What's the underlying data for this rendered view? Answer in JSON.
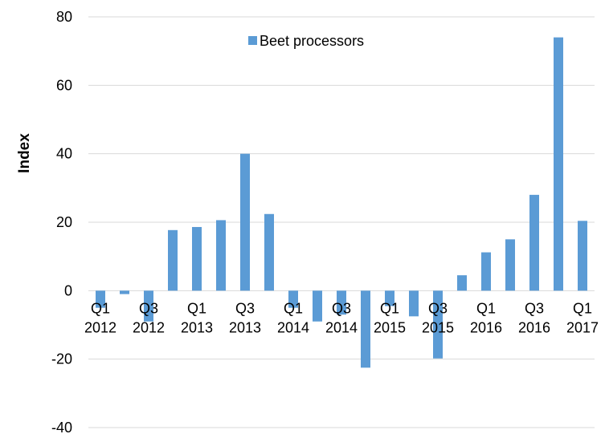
{
  "chart_data": {
    "type": "bar",
    "ylabel": "Index",
    "xlabel": "",
    "ylim": [
      -40,
      80
    ],
    "y_ticks": [
      "80",
      "60",
      "40",
      "20",
      "0",
      "-20",
      "-40"
    ],
    "y_tick_values": [
      80,
      60,
      40,
      20,
      0,
      -20,
      -40
    ],
    "grid": "horizontal",
    "legend_position": "top-center",
    "color": "#5B9BD5",
    "categories": [
      "Q1 2012",
      "Q2 2012",
      "Q3 2012",
      "Q4 2012",
      "Q1 2013",
      "Q2 2013",
      "Q3 2013",
      "Q4 2013",
      "Q1 2014",
      "Q2 2014",
      "Q3 2014",
      "Q4 2014",
      "Q1 2015",
      "Q2 2015",
      "Q3 2015",
      "Q4 2015",
      "Q1 2016",
      "Q2 2016",
      "Q3 2016",
      "Q4 2016",
      "Q1 2017"
    ],
    "x_tick_labels": [
      {
        "index": 0,
        "line1": "Q1",
        "line2": "2012"
      },
      {
        "index": 2,
        "line1": "Q3",
        "line2": "2012"
      },
      {
        "index": 4,
        "line1": "Q1",
        "line2": "2013"
      },
      {
        "index": 6,
        "line1": "Q3",
        "line2": "2013"
      },
      {
        "index": 8,
        "line1": "Q1",
        "line2": "2014"
      },
      {
        "index": 10,
        "line1": "Q3",
        "line2": "2014"
      },
      {
        "index": 12,
        "line1": "Q1",
        "line2": "2015"
      },
      {
        "index": 14,
        "line1": "Q3",
        "line2": "2015"
      },
      {
        "index": 16,
        "line1": "Q1",
        "line2": "2016"
      },
      {
        "index": 18,
        "line1": "Q3",
        "line2": "2016"
      },
      {
        "index": 20,
        "line1": "Q1",
        "line2": "2017"
      }
    ],
    "series": [
      {
        "name": "Beet processors",
        "values": [
          -5,
          -1,
          -9,
          17.7,
          18.6,
          20.6,
          40,
          22.4,
          -5,
          -9,
          -7,
          -22.5,
          -4.5,
          -7.5,
          -19.8,
          4.5,
          11.2,
          15,
          28,
          74,
          20.4
        ]
      }
    ]
  }
}
